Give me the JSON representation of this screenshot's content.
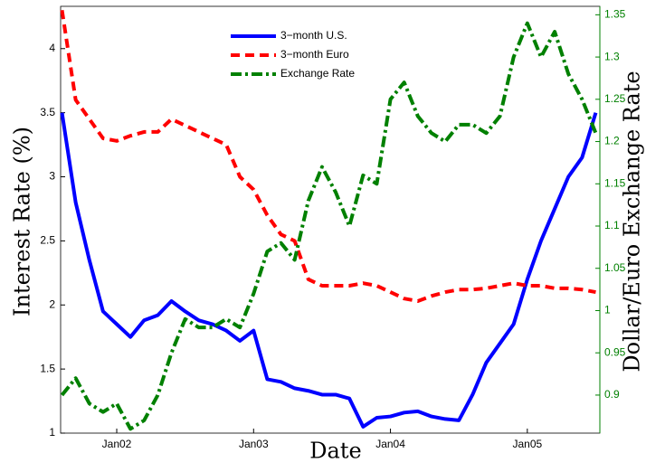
{
  "chart_data": {
    "type": "line",
    "xlabel": "Date",
    "ylabel": "Interest Rate (%)",
    "y2label": "Dollar/Euro Exchange Rate",
    "x": [
      2001.6,
      2001.7,
      2001.8,
      2001.9,
      2002.0,
      2002.1,
      2002.2,
      2002.3,
      2002.4,
      2002.5,
      2002.6,
      2002.7,
      2002.8,
      2002.9,
      2003.0,
      2003.1,
      2003.2,
      2003.3,
      2003.4,
      2003.5,
      2003.6,
      2003.7,
      2003.8,
      2003.9,
      2004.0,
      2004.1,
      2004.2,
      2004.3,
      2004.4,
      2004.5,
      2004.6,
      2004.7,
      2004.8,
      2004.9,
      2005.0,
      2005.1,
      2005.2,
      2005.3,
      2005.4,
      2005.5
    ],
    "xlim": [
      2001.59,
      2005.53
    ],
    "xticks": [
      {
        "value": 2002,
        "label": "Jan02"
      },
      {
        "value": 2003,
        "label": "Jan03"
      },
      {
        "value": 2004,
        "label": "Jan04"
      },
      {
        "value": 2005,
        "label": "Jan05"
      }
    ],
    "ylim": [
      1,
      4.33
    ],
    "yticks": [
      1,
      1.5,
      2,
      2.5,
      3,
      3.5,
      4
    ],
    "y2lim": [
      0.855,
      1.36
    ],
    "y2ticks": [
      0.9,
      0.95,
      1,
      1.05,
      1.1,
      1.15,
      1.2,
      1.25,
      1.3,
      1.35
    ],
    "y2color": "#008000",
    "series": [
      {
        "name": "3−month U.S.",
        "color": "#0000ff",
        "dash": "solid",
        "values": [
          3.5,
          2.8,
          2.35,
          1.95,
          1.85,
          1.75,
          1.88,
          1.92,
          2.03,
          1.95,
          1.88,
          1.85,
          1.8,
          1.72,
          1.8,
          1.42,
          1.4,
          1.35,
          1.33,
          1.3,
          1.3,
          1.27,
          1.05,
          1.12,
          1.13,
          1.16,
          1.17,
          1.13,
          1.11,
          1.1,
          1.3,
          1.55,
          1.7,
          1.85,
          2.2,
          2.5,
          2.75,
          3.0,
          3.15,
          3.5
        ]
      },
      {
        "name": "3−month Euro",
        "color": "#ff0000",
        "dash": "dashed",
        "values": [
          4.3,
          3.6,
          3.45,
          3.3,
          3.28,
          3.32,
          3.35,
          3.35,
          3.45,
          3.4,
          3.35,
          3.3,
          3.25,
          3.0,
          2.9,
          2.7,
          2.55,
          2.5,
          2.2,
          2.15,
          2.15,
          2.15,
          2.17,
          2.15,
          2.1,
          2.05,
          2.03,
          2.07,
          2.1,
          2.12,
          2.12,
          2.13,
          2.15,
          2.17,
          2.15,
          2.15,
          2.13,
          2.13,
          2.12,
          2.1
        ]
      },
      {
        "name": "Exchange Rate",
        "color": "#008000",
        "dash": "dashdot",
        "axis": "y2",
        "values": [
          0.9,
          0.92,
          0.89,
          0.88,
          0.89,
          0.86,
          0.87,
          0.9,
          0.95,
          0.99,
          0.98,
          0.98,
          0.99,
          0.98,
          1.02,
          1.07,
          1.08,
          1.06,
          1.13,
          1.17,
          1.14,
          1.1,
          1.16,
          1.15,
          1.25,
          1.27,
          1.23,
          1.21,
          1.2,
          1.22,
          1.22,
          1.21,
          1.23,
          1.3,
          1.34,
          1.3,
          1.33,
          1.28,
          1.25,
          1.21
        ]
      }
    ]
  }
}
